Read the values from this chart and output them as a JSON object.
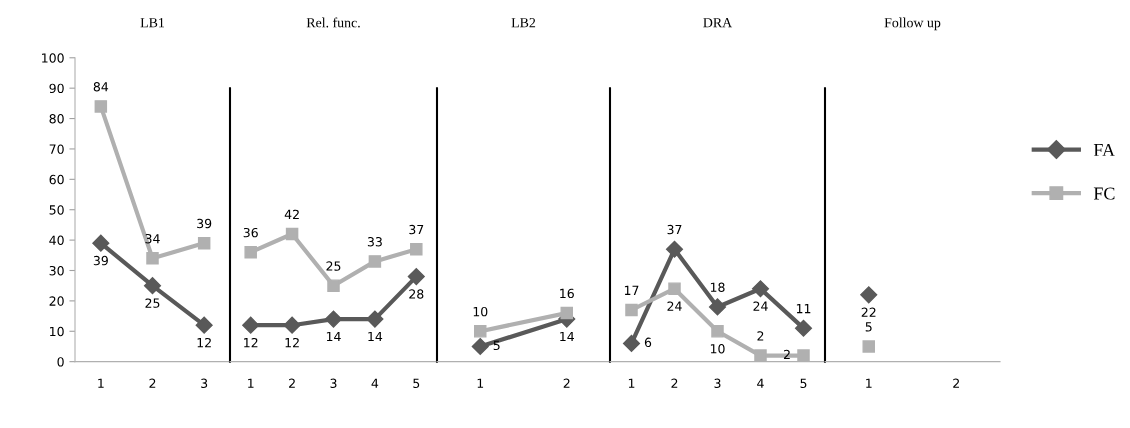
{
  "chart_data": [
    {
      "type": "line",
      "title": "LB1",
      "categories": [
        "1",
        "2",
        "3"
      ],
      "ylim": [
        0,
        100
      ],
      "yticks": [
        0,
        10,
        20,
        30,
        40,
        50,
        60,
        70,
        80,
        90,
        100
      ],
      "data_labels": true,
      "legend": false,
      "grid": false,
      "series": [
        {
          "color": "#595959",
          "marker": "diamond",
          "values": [
            39,
            25,
            12
          ]
        },
        {
          "color": "#b0b0b0",
          "marker": "square",
          "values": [
            84,
            34,
            39
          ]
        }
      ]
    },
    {
      "type": "line",
      "title": "Rel. func.",
      "categories": [
        "1",
        "2",
        "3",
        "4",
        "5"
      ],
      "ylim": [
        0,
        100
      ],
      "tick_labels": "x",
      "data_labels": true,
      "legend": false,
      "grid": false,
      "series": [
        {
          "color": "#595959",
          "marker": "diamond",
          "values": [
            12,
            12,
            14,
            14,
            28
          ]
        },
        {
          "color": "#b0b0b0",
          "marker": "square",
          "values": [
            36,
            42,
            25,
            33,
            37
          ]
        }
      ]
    },
    {
      "type": "line",
      "title": "LB2",
      "categories": [
        "1",
        "2"
      ],
      "ylim": [
        0,
        100
      ],
      "tick_labels": "x",
      "data_labels": true,
      "legend": false,
      "grid": false,
      "series": [
        {
          "color": "#595959",
          "marker": "diamond",
          "values": [
            5,
            14
          ]
        },
        {
          "color": "#b0b0b0",
          "marker": "square",
          "values": [
            10,
            16
          ]
        }
      ]
    },
    {
      "type": "line",
      "title": "DRA",
      "categories": [
        "1",
        "2",
        "3",
        "4",
        "5"
      ],
      "ylim": [
        0,
        100
      ],
      "tick_labels": "x",
      "data_labels": true,
      "legend": false,
      "grid": false,
      "series": [
        {
          "color": "#595959",
          "marker": "diamond",
          "values": [
            6,
            37,
            18,
            24,
            11
          ]
        },
        {
          "color": "#b0b0b0",
          "marker": "square",
          "values": [
            17,
            24,
            10,
            2,
            2
          ]
        }
      ]
    },
    {
      "type": "line",
      "title": "Follow up",
      "categories": [
        "1",
        "2"
      ],
      "ylim": [
        0,
        100
      ],
      "tick_labels": "x",
      "data_labels": true,
      "legend": "right",
      "grid": false,
      "series": [
        {
          "name": "FA",
          "color": "#595959",
          "marker": "diamond",
          "values": [
            22,
            null
          ]
        },
        {
          "name": "FC",
          "color": "#b0b0b0",
          "marker": "square",
          "values": [
            5,
            null
          ]
        }
      ]
    }
  ]
}
